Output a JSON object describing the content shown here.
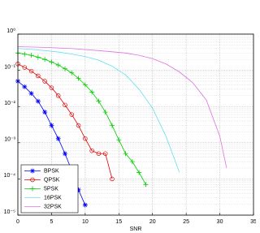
{
  "chart_data": {
    "type": "line",
    "x_label": "SNR",
    "log_y": true,
    "grid": true,
    "legend": "lower left",
    "xlim": [
      0,
      35
    ],
    "xticks": [
      0,
      5,
      10,
      15,
      20,
      25,
      30,
      35
    ],
    "ylim": [
      1e-05,
      1
    ],
    "yticks": [
      {
        "value": 1e-05,
        "label": "10⁻⁵"
      },
      {
        "value": 0.0001,
        "label": "10⁻⁴"
      },
      {
        "value": 0.001,
        "label": "10⁻³"
      },
      {
        "value": 0.01,
        "label": "10⁻²"
      },
      {
        "value": 0.1,
        "label": "10⁻¹"
      },
      {
        "value": 1,
        "label": "10⁰"
      }
    ],
    "series": [
      {
        "name": "BPSK",
        "color": "#0000ff",
        "marker": "star",
        "x": [
          0,
          1,
          2,
          3,
          4,
          5,
          6,
          7,
          8,
          9,
          10
        ],
        "values": [
          0.05,
          0.035,
          0.023,
          0.014,
          0.007,
          0.003,
          0.0013,
          0.0005,
          0.00017,
          5e-05,
          1.9e-05
        ]
      },
      {
        "name": "QPSK",
        "color": "#e00000",
        "marker": "circle",
        "x": [
          0,
          1,
          2,
          3,
          4,
          5,
          6,
          7,
          8,
          9,
          10,
          11,
          12,
          13,
          14
        ],
        "values": [
          0.15,
          0.12,
          0.095,
          0.07,
          0.05,
          0.033,
          0.02,
          0.011,
          0.006,
          0.003,
          0.0013,
          0.0006,
          0.0005,
          0.0005,
          0.0001
        ]
      },
      {
        "name": "5PSK",
        "color": "#00cc00",
        "marker": "plus",
        "x": [
          0,
          1,
          2,
          3,
          4,
          5,
          6,
          7,
          8,
          9,
          10,
          11,
          12,
          13,
          14,
          15,
          16,
          17,
          18,
          19
        ],
        "values": [
          0.3,
          0.28,
          0.26,
          0.23,
          0.2,
          0.17,
          0.14,
          0.11,
          0.085,
          0.06,
          0.04,
          0.025,
          0.014,
          0.007,
          0.003,
          0.0012,
          0.0005,
          0.0003,
          0.00015,
          7e-05
        ]
      },
      {
        "name": "16PSK",
        "color": "#66e0f0",
        "marker": "none",
        "x": [
          0,
          2,
          4,
          6,
          8,
          10,
          12,
          14,
          16,
          18,
          20,
          22,
          24
        ],
        "values": [
          0.4,
          0.38,
          0.35,
          0.32,
          0.28,
          0.24,
          0.19,
          0.13,
          0.075,
          0.03,
          0.009,
          0.0015,
          0.00015
        ]
      },
      {
        "name": "32PSK",
        "color": "#e070e0",
        "marker": "none",
        "x": [
          0,
          4,
          8,
          12,
          16,
          18,
          20,
          22,
          24,
          26,
          28,
          30,
          31
        ],
        "values": [
          0.45,
          0.43,
          0.4,
          0.35,
          0.3,
          0.26,
          0.21,
          0.15,
          0.09,
          0.045,
          0.015,
          0.0015,
          0.0002
        ]
      }
    ]
  }
}
